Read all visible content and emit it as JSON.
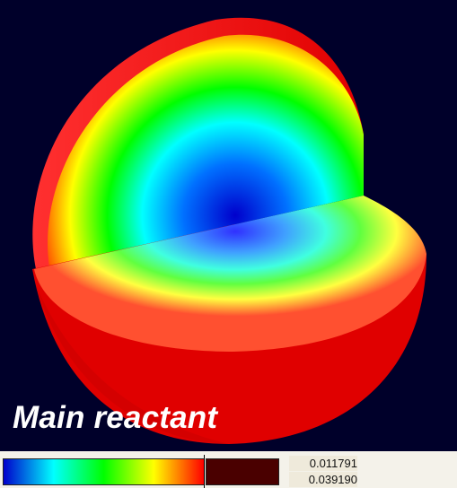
{
  "caption": "Main reactant",
  "legend": {
    "min_value": "0.011791",
    "max_value": "0.039190",
    "colormap_stops": [
      "#0000cc",
      "#00ffff",
      "#00ff00",
      "#ffff00",
      "#ff0000"
    ],
    "swatch_color": "#4a0000"
  },
  "colors": {
    "background": "#00002a",
    "shell": "#e00000",
    "center": "#0000cc"
  }
}
